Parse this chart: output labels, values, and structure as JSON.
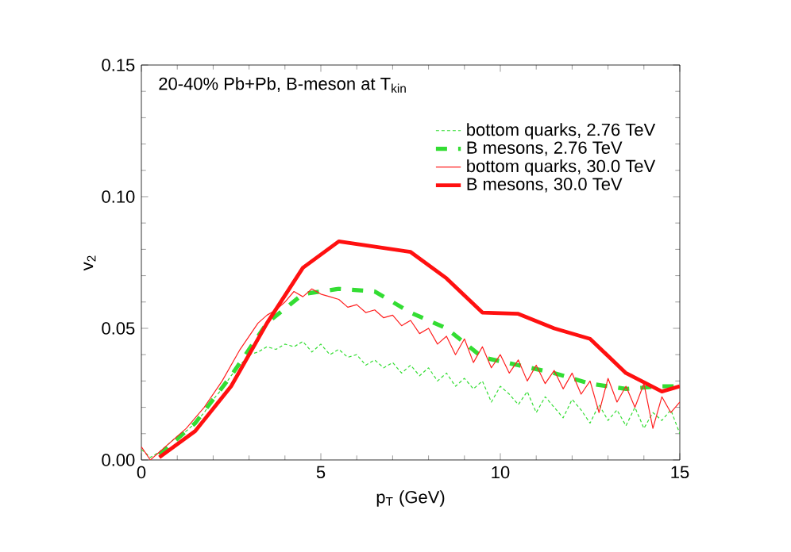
{
  "chart_data": {
    "type": "line",
    "title": "20-40% Pb+Pb, B-meson at T$_{kin}$",
    "xlabel": "p$_{T}$ (GeV)",
    "ylabel": "v$_{2}$",
    "xlim": [
      0,
      15
    ],
    "ylim": [
      0,
      0.15
    ],
    "xticks": [
      0,
      5,
      10,
      15
    ],
    "yticks": [
      {
        "value": 0,
        "label": "0.00"
      },
      {
        "value": 0.05,
        "label": "0.05"
      },
      {
        "value": 0.1,
        "label": "0.10"
      },
      {
        "value": 0.15,
        "label": "0.15"
      }
    ],
    "legend": "top right",
    "grid": false,
    "series": [
      {
        "name": "bottom quarks, 2.76 TeV",
        "color": "#33dd33",
        "line_style": "dotted",
        "x": [
          0,
          0.25,
          0.5,
          0.75,
          1,
          1.25,
          1.5,
          1.75,
          2,
          2.25,
          2.5,
          2.75,
          3,
          3.25,
          3.5,
          3.75,
          4,
          4.25,
          4.5,
          4.75,
          5,
          5.25,
          5.5,
          5.75,
          6,
          6.25,
          6.5,
          6.75,
          7,
          7.25,
          7.5,
          7.75,
          8,
          8.25,
          8.5,
          8.75,
          9,
          9.25,
          9.5,
          9.75,
          10,
          10.25,
          10.5,
          10.75,
          11,
          11.25,
          11.5,
          11.75,
          12,
          12.25,
          12.5,
          12.75,
          13,
          13.25,
          13.5,
          13.75,
          14,
          14.25,
          14.5,
          14.75,
          15
        ],
        "values": [
          0.004,
          0.001,
          0.003,
          0.006,
          0.009,
          0.011,
          0.014,
          0.018,
          0.023,
          0.027,
          0.032,
          0.036,
          0.04,
          0.041,
          0.043,
          0.042,
          0.044,
          0.043,
          0.045,
          0.041,
          0.044,
          0.04,
          0.042,
          0.039,
          0.04,
          0.036,
          0.038,
          0.035,
          0.037,
          0.033,
          0.036,
          0.032,
          0.035,
          0.03,
          0.033,
          0.028,
          0.031,
          0.027,
          0.03,
          0.022,
          0.028,
          0.025,
          0.021,
          0.026,
          0.018,
          0.024,
          0.02,
          0.016,
          0.023,
          0.019,
          0.014,
          0.021,
          0.015,
          0.019,
          0.013,
          0.02,
          0.012,
          0.018,
          0.015,
          0.019,
          0.01
        ]
      },
      {
        "name": "B mesons, 2.76 TeV",
        "color": "#33dd33",
        "line_style": "dashed",
        "x": [
          0.5,
          1.5,
          2.5,
          3.5,
          4.5,
          5.5,
          6.5,
          7.5,
          8.5,
          9.5,
          10.5,
          11.5,
          12.5,
          13.5,
          14.5,
          15
        ],
        "values": [
          0.002,
          0.014,
          0.032,
          0.052,
          0.063,
          0.065,
          0.064,
          0.056,
          0.05,
          0.039,
          0.036,
          0.033,
          0.029,
          0.027,
          0.028,
          0.028
        ]
      },
      {
        "name": "bottom quarks, 30.0 TeV",
        "color": "#ff2020",
        "line_style": "solid",
        "x": [
          0,
          0.25,
          0.5,
          0.75,
          1,
          1.25,
          1.5,
          1.75,
          2,
          2.25,
          2.5,
          2.75,
          3,
          3.25,
          3.5,
          3.75,
          4,
          4.25,
          4.5,
          4.75,
          5,
          5.25,
          5.5,
          5.75,
          6,
          6.25,
          6.5,
          6.75,
          7,
          7.25,
          7.5,
          7.75,
          8,
          8.25,
          8.5,
          8.75,
          9,
          9.25,
          9.5,
          9.75,
          10,
          10.25,
          10.5,
          10.75,
          11,
          11.25,
          11.5,
          11.75,
          12,
          12.25,
          12.5,
          12.75,
          13,
          13.25,
          13.5,
          13.75,
          14,
          14.25,
          14.5,
          14.75,
          15
        ],
        "values": [
          0.005,
          0.0,
          0.003,
          0.006,
          0.009,
          0.012,
          0.016,
          0.02,
          0.025,
          0.03,
          0.036,
          0.042,
          0.047,
          0.052,
          0.055,
          0.057,
          0.06,
          0.064,
          0.062,
          0.065,
          0.063,
          0.062,
          0.061,
          0.058,
          0.059,
          0.056,
          0.057,
          0.054,
          0.055,
          0.051,
          0.053,
          0.048,
          0.05,
          0.044,
          0.047,
          0.04,
          0.046,
          0.037,
          0.043,
          0.035,
          0.04,
          0.033,
          0.038,
          0.03,
          0.036,
          0.029,
          0.034,
          0.027,
          0.033,
          0.025,
          0.03,
          0.018,
          0.031,
          0.022,
          0.028,
          0.02,
          0.029,
          0.012,
          0.024,
          0.018,
          0.022
        ]
      },
      {
        "name": "B mesons, 30.0 TeV",
        "color": "#ff1010",
        "line_style": "solid",
        "x": [
          0.5,
          1.5,
          2.5,
          3.5,
          4.5,
          5.5,
          6.5,
          7.5,
          8.5,
          9.5,
          10.5,
          11.5,
          12.5,
          13.5,
          14.5,
          15
        ],
        "values": [
          0.001,
          0.011,
          0.028,
          0.052,
          0.073,
          0.083,
          0.081,
          0.079,
          0.069,
          0.056,
          0.0555,
          0.05,
          0.046,
          0.033,
          0.026,
          0.028
        ]
      }
    ]
  }
}
